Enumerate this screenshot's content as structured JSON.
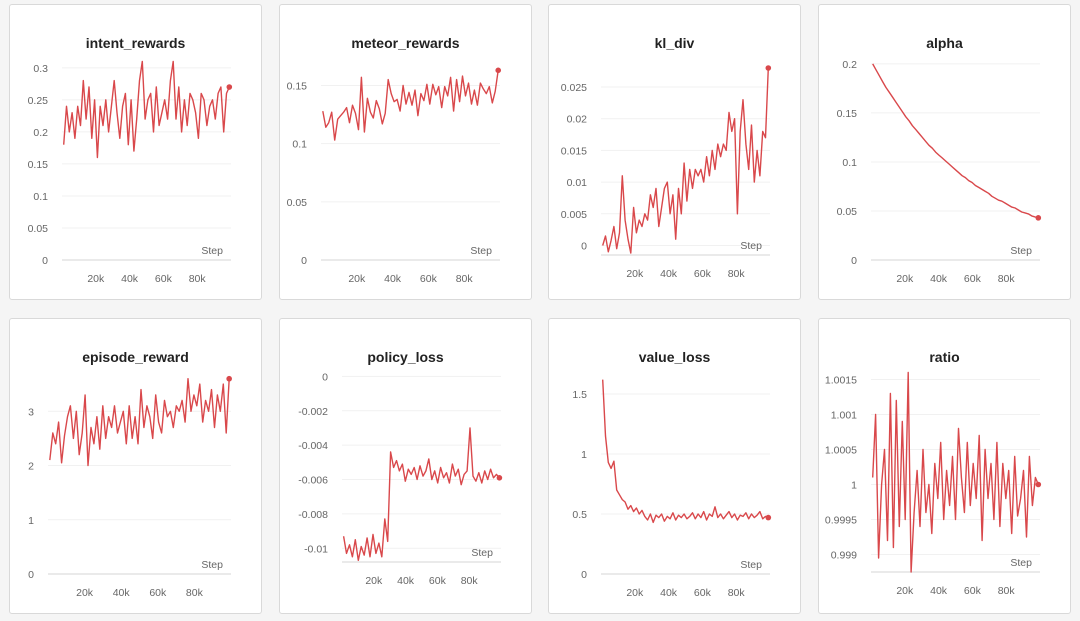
{
  "line_color": "#d9484b",
  "axis_color": "#e3e3e3",
  "grid_color": "#f1f1f1",
  "chart_data": [
    {
      "type": "line",
      "title": "intent_rewards",
      "xlabel": "Step",
      "xlim": [
        0,
        100000
      ],
      "ylim": [
        0,
        0.32
      ],
      "x_ticks": [
        20000,
        40000,
        60000,
        80000
      ],
      "x_tick_labels": [
        "20k",
        "40k",
        "60k",
        "80k"
      ],
      "y_ticks": [
        0,
        0.05,
        0.1,
        0.15,
        0.2,
        0.25,
        0.3
      ],
      "y_tick_labels": [
        "0",
        "0.05",
        "0.1",
        "0.15",
        "0.2",
        "0.25",
        "0.3"
      ],
      "series": [
        {
          "x_start": 1000,
          "x_end": 99000,
          "values": [
            0.18,
            0.24,
            0.2,
            0.23,
            0.19,
            0.24,
            0.21,
            0.28,
            0.22,
            0.27,
            0.19,
            0.25,
            0.16,
            0.24,
            0.21,
            0.25,
            0.2,
            0.24,
            0.28,
            0.23,
            0.19,
            0.24,
            0.26,
            0.18,
            0.25,
            0.17,
            0.22,
            0.28,
            0.31,
            0.22,
            0.25,
            0.26,
            0.2,
            0.27,
            0.21,
            0.23,
            0.25,
            0.22,
            0.28,
            0.31,
            0.22,
            0.27,
            0.2,
            0.25,
            0.21,
            0.26,
            0.25,
            0.23,
            0.19,
            0.26,
            0.25,
            0.21,
            0.24,
            0.25,
            0.22,
            0.26,
            0.27,
            0.2,
            0.26,
            0.27
          ]
        }
      ]
    },
    {
      "type": "line",
      "title": "meteor_rewards",
      "xlabel": "Step",
      "xlim": [
        0,
        100000
      ],
      "ylim": [
        0,
        0.165
      ],
      "x_ticks": [
        20000,
        40000,
        60000,
        80000
      ],
      "x_tick_labels": [
        "20k",
        "40k",
        "60k",
        "80k"
      ],
      "y_ticks": [
        0,
        0.05,
        0.1,
        0.15
      ],
      "y_tick_labels": [
        "0",
        "0.05",
        "0.1",
        "0.15"
      ],
      "series": [
        {
          "x_start": 1000,
          "x_end": 99000,
          "values": [
            0.128,
            0.114,
            0.118,
            0.127,
            0.103,
            0.121,
            0.124,
            0.127,
            0.131,
            0.118,
            0.133,
            0.126,
            0.112,
            0.157,
            0.11,
            0.139,
            0.127,
            0.122,
            0.137,
            0.13,
            0.117,
            0.126,
            0.155,
            0.143,
            0.136,
            0.138,
            0.128,
            0.15,
            0.134,
            0.144,
            0.133,
            0.146,
            0.124,
            0.143,
            0.137,
            0.151,
            0.134,
            0.151,
            0.142,
            0.149,
            0.131,
            0.149,
            0.141,
            0.157,
            0.128,
            0.155,
            0.136,
            0.158,
            0.141,
            0.152,
            0.134,
            0.146,
            0.133,
            0.152,
            0.147,
            0.143,
            0.149,
            0.135,
            0.145,
            0.163
          ]
        }
      ]
    },
    {
      "type": "line",
      "title": "kl_div",
      "xlabel": "Step",
      "xlim": [
        0,
        100000
      ],
      "ylim": [
        -0.0015,
        0.028
      ],
      "x_ticks": [
        20000,
        40000,
        60000,
        80000
      ],
      "x_tick_labels": [
        "20k",
        "40k",
        "60k",
        "80k"
      ],
      "y_ticks": [
        0,
        0.005,
        0.01,
        0.015,
        0.02,
        0.025
      ],
      "y_tick_labels": [
        "0",
        "0.005",
        "0.01",
        "0.015",
        "0.02",
        "0.025"
      ],
      "series": [
        {
          "x_start": 1000,
          "x_end": 99000,
          "values": [
            0,
            0.0015,
            -0.001,
            0.0008,
            0.003,
            -0.0005,
            0.002,
            0.011,
            0.004,
            0.001,
            -0.0012,
            0.006,
            0.002,
            0.004,
            0.003,
            0.005,
            0.004,
            0.008,
            0.006,
            0.009,
            0.003,
            0.006,
            0.009,
            0.01,
            0.005,
            0.008,
            0.001,
            0.009,
            0.005,
            0.013,
            0.007,
            0.012,
            0.009,
            0.012,
            0.011,
            0.012,
            0.01,
            0.014,
            0.011,
            0.015,
            0.012,
            0.016,
            0.014,
            0.016,
            0.015,
            0.021,
            0.018,
            0.02,
            0.005,
            0.018,
            0.023,
            0.016,
            0.012,
            0.019,
            0.01,
            0.015,
            0.011,
            0.018,
            0.017,
            0.028
          ]
        }
      ]
    },
    {
      "type": "line",
      "title": "alpha",
      "xlabel": "Step",
      "xlim": [
        0,
        100000
      ],
      "ylim": [
        0,
        0.205
      ],
      "x_ticks": [
        20000,
        40000,
        60000,
        80000
      ],
      "x_tick_labels": [
        "20k",
        "40k",
        "60k",
        "80k"
      ],
      "y_ticks": [
        0,
        0.05,
        0.1,
        0.15,
        0.2
      ],
      "y_tick_labels": [
        "0",
        "0.05",
        "0.1",
        "0.15",
        "0.2"
      ],
      "series": [
        {
          "x_start": 1000,
          "x_end": 99000,
          "values": [
            0.2,
            0.194,
            0.188,
            0.182,
            0.176,
            0.171,
            0.166,
            0.161,
            0.156,
            0.151,
            0.146,
            0.142,
            0.137,
            0.133,
            0.129,
            0.125,
            0.121,
            0.117,
            0.114,
            0.11,
            0.107,
            0.104,
            0.101,
            0.098,
            0.095,
            0.092,
            0.089,
            0.086,
            0.084,
            0.081,
            0.079,
            0.076,
            0.074,
            0.072,
            0.07,
            0.068,
            0.065,
            0.063,
            0.061,
            0.06,
            0.058,
            0.056,
            0.054,
            0.053,
            0.051,
            0.049,
            0.048,
            0.047,
            0.045,
            0.044,
            0.043
          ]
        }
      ]
    },
    {
      "type": "line",
      "title": "episode_reward",
      "xlabel": "Step",
      "xlim": [
        0,
        100000
      ],
      "ylim": [
        0,
        3.65
      ],
      "x_ticks": [
        20000,
        40000,
        60000,
        80000
      ],
      "x_tick_labels": [
        "20k",
        "40k",
        "60k",
        "80k"
      ],
      "y_ticks": [
        0,
        1,
        2,
        3
      ],
      "y_tick_labels": [
        "0",
        "1",
        "2",
        "3"
      ],
      "series": [
        {
          "x_start": 1000,
          "x_end": 99000,
          "values": [
            2.1,
            2.6,
            2.4,
            2.8,
            2.05,
            2.55,
            2.9,
            3.1,
            2.5,
            3.0,
            2.2,
            2.6,
            3.3,
            2.0,
            2.7,
            2.4,
            2.9,
            2.3,
            3.1,
            2.5,
            2.9,
            2.7,
            3.1,
            2.6,
            2.8,
            3.0,
            2.4,
            3.1,
            2.5,
            2.9,
            2.4,
            3.4,
            2.7,
            3.1,
            2.9,
            2.5,
            3.3,
            2.8,
            2.6,
            3.2,
            2.9,
            3.0,
            2.7,
            3.1,
            3.0,
            3.2,
            2.8,
            3.6,
            3.0,
            3.3,
            3.1,
            3.5,
            2.8,
            3.2,
            3.0,
            3.4,
            2.7,
            3.3,
            3.0,
            3.5,
            2.6,
            3.6
          ]
        }
      ]
    },
    {
      "type": "line",
      "title": "policy_loss",
      "xlabel": "Step",
      "xlim": [
        0,
        100000
      ],
      "ylim": [
        -0.0108,
        0.0002
      ],
      "x_ticks": [
        20000,
        40000,
        60000,
        80000
      ],
      "x_tick_labels": [
        "20k",
        "40k",
        "60k",
        "80k"
      ],
      "y_ticks": [
        0,
        -0.002,
        -0.004,
        -0.006,
        -0.008,
        -0.01
      ],
      "y_tick_labels": [
        "0",
        "-0.002",
        "-0.004",
        "-0.006",
        "-0.008",
        "-0.01"
      ],
      "series": [
        {
          "x_start": 1000,
          "x_end": 99000,
          "values": [
            -0.0093,
            -0.0103,
            -0.0098,
            -0.0105,
            -0.0095,
            -0.0107,
            -0.0099,
            -0.0104,
            -0.0094,
            -0.0105,
            -0.0092,
            -0.0103,
            -0.0097,
            -0.0105,
            -0.0083,
            -0.0096,
            -0.0044,
            -0.0053,
            -0.0049,
            -0.0055,
            -0.0051,
            -0.0061,
            -0.0054,
            -0.0057,
            -0.0053,
            -0.006,
            -0.0052,
            -0.0058,
            -0.0055,
            -0.0048,
            -0.006,
            -0.0055,
            -0.0062,
            -0.0053,
            -0.0059,
            -0.0056,
            -0.0062,
            -0.0051,
            -0.0058,
            -0.0054,
            -0.0063,
            -0.0057,
            -0.0055,
            -0.003,
            -0.0058,
            -0.0061,
            -0.0056,
            -0.0062,
            -0.0055,
            -0.006,
            -0.0054,
            -0.0059,
            -0.0057,
            -0.0059
          ]
        }
      ]
    },
    {
      "type": "line",
      "title": "value_loss",
      "xlabel": "Step",
      "xlim": [
        0,
        100000
      ],
      "ylim": [
        0,
        1.65
      ],
      "x_ticks": [
        20000,
        40000,
        60000,
        80000
      ],
      "x_tick_labels": [
        "20k",
        "40k",
        "60k",
        "80k"
      ],
      "y_ticks": [
        0,
        0.5,
        1,
        1.5
      ],
      "y_tick_labels": [
        "0",
        "0.5",
        "1",
        "1.5"
      ],
      "series": [
        {
          "x_start": 1000,
          "x_end": 99000,
          "values": [
            1.62,
            1.15,
            0.93,
            0.88,
            0.94,
            0.7,
            0.66,
            0.62,
            0.6,
            0.54,
            0.57,
            0.52,
            0.55,
            0.5,
            0.53,
            0.48,
            0.45,
            0.5,
            0.43,
            0.49,
            0.47,
            0.5,
            0.44,
            0.48,
            0.46,
            0.51,
            0.45,
            0.49,
            0.47,
            0.5,
            0.46,
            0.48,
            0.51,
            0.46,
            0.5,
            0.47,
            0.52,
            0.45,
            0.5,
            0.48,
            0.56,
            0.47,
            0.5,
            0.46,
            0.49,
            0.52,
            0.47,
            0.5,
            0.45,
            0.49,
            0.48,
            0.51,
            0.46,
            0.5,
            0.47,
            0.49,
            0.52,
            0.46,
            0.48,
            0.47
          ]
        }
      ]
    },
    {
      "type": "line",
      "title": "ratio",
      "xlabel": "Step",
      "xlim": [
        0,
        100000
      ],
      "ylim": [
        0.99875,
        1.00165
      ],
      "x_ticks": [
        20000,
        40000,
        60000,
        80000
      ],
      "x_tick_labels": [
        "20k",
        "40k",
        "60k",
        "80k"
      ],
      "y_ticks": [
        0.999,
        0.9995,
        1,
        1.0005,
        1.001,
        1.0015
      ],
      "y_tick_labels": [
        "0.999",
        "0.9995",
        "1",
        "1.0005",
        "1.001",
        "1.0015"
      ],
      "series": [
        {
          "x_start": 1000,
          "x_end": 99000,
          "values": [
            1.0001,
            1.001,
            0.99895,
            1.0,
            1.0005,
            0.9992,
            1.0013,
            0.9991,
            1.0012,
            0.9994,
            1.0009,
            0.9995,
            1.0016,
            0.99875,
            0.9996,
            1.0002,
            0.9994,
            1.0005,
            0.9996,
            1.0,
            0.9993,
            1.0003,
            0.9998,
            1.0006,
            0.9995,
            1.0002,
            0.9997,
            1.0004,
            0.9995,
            1.0008,
            1.0001,
            0.9996,
            1.0006,
            0.9997,
            1.0003,
            0.9998,
            1.0007,
            0.9992,
            1.0005,
            0.9998,
            1.0003,
            0.9995,
            1.0006,
            0.9994,
            1.0003,
            0.9998,
            1.0002,
            0.9993,
            1.0004,
            0.99955,
            0.9998,
            1.0002,
            0.99925,
            1.0004,
            0.9997,
            1.0001,
            1.0
          ]
        }
      ]
    }
  ]
}
